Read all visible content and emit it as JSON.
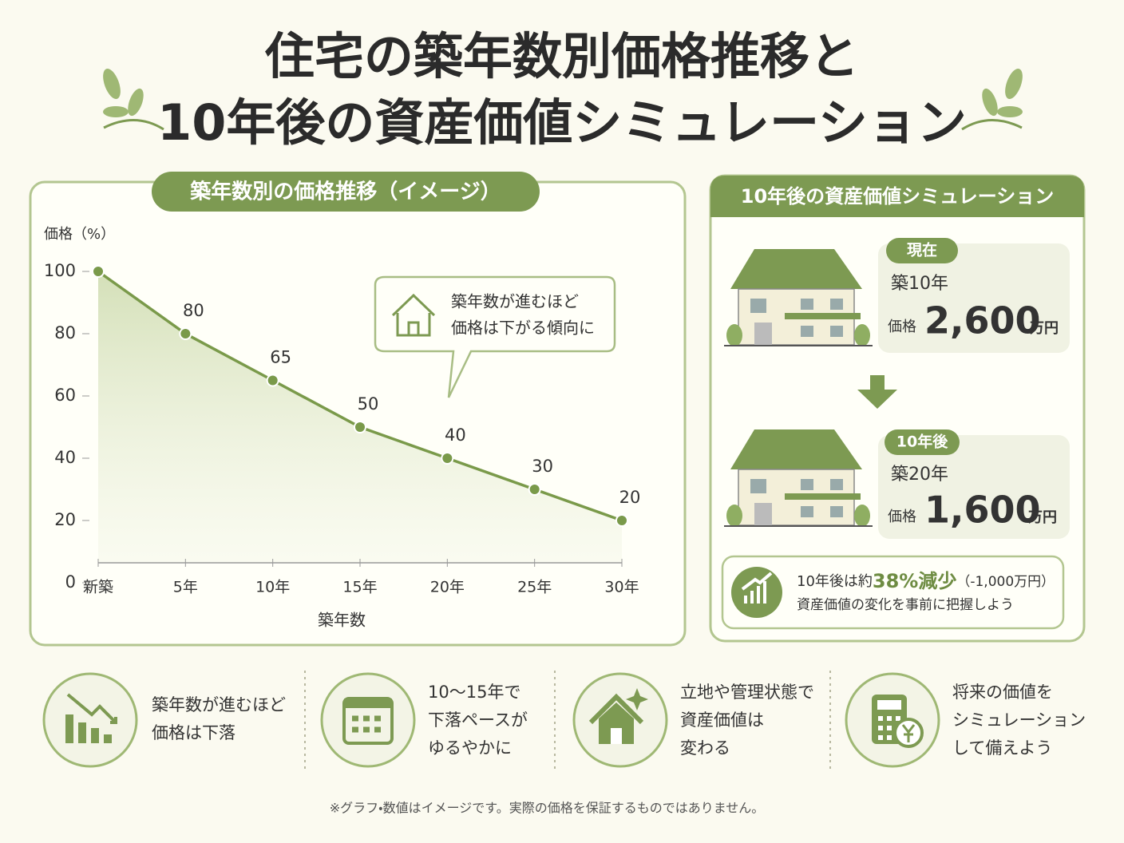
{
  "title_lines": [
    "住宅の築年数別価格推移と",
    "10年後の資産価値シミュレーション"
  ],
  "chart_data": {
    "type": "line",
    "title": "築年数別の価格推移（イメージ）",
    "y_label": "価格（%）",
    "x_label": "築年数",
    "categories": [
      "新築",
      "5年",
      "10年",
      "15年",
      "20年",
      "25年",
      "30年"
    ],
    "values": [
      100,
      80,
      65,
      50,
      40,
      30,
      20
    ],
    "ylim": [
      0,
      100
    ],
    "yticks": [
      0,
      20,
      40,
      60,
      80,
      100
    ],
    "color": "#7a9a4a",
    "annotation": [
      "築年数が進むほど",
      "価格は下がる傾向に"
    ]
  },
  "simulation": {
    "title": "10年後の資産価値シミュレーション",
    "now": {
      "badge": "現在",
      "age": "築10年",
      "price_label": "価格",
      "price": "2,600",
      "unit": "万円"
    },
    "later": {
      "badge": "10年後",
      "age": "築20年",
      "price_label": "価格",
      "price": "1,600",
      "unit": "万円"
    },
    "summary": {
      "prefix": "10年後は約",
      "highlight": "38%減少",
      "suffix": "（-1,000万円）",
      "line2": "資産価値の変化を事前に把握しよう"
    }
  },
  "tips": [
    [
      "築年数が進むほど",
      "価格は下落"
    ],
    [
      "10～15年で",
      "下落ペースが",
      "ゆるやかに"
    ],
    [
      "立地や管理状態で",
      "資産価値は",
      "変わる"
    ],
    [
      "将来の価値を",
      "シミュレーション",
      "して備えよう"
    ]
  ],
  "footnote": "※グラフ・数値はイメージです。実際の価格を保証するものではありません。"
}
